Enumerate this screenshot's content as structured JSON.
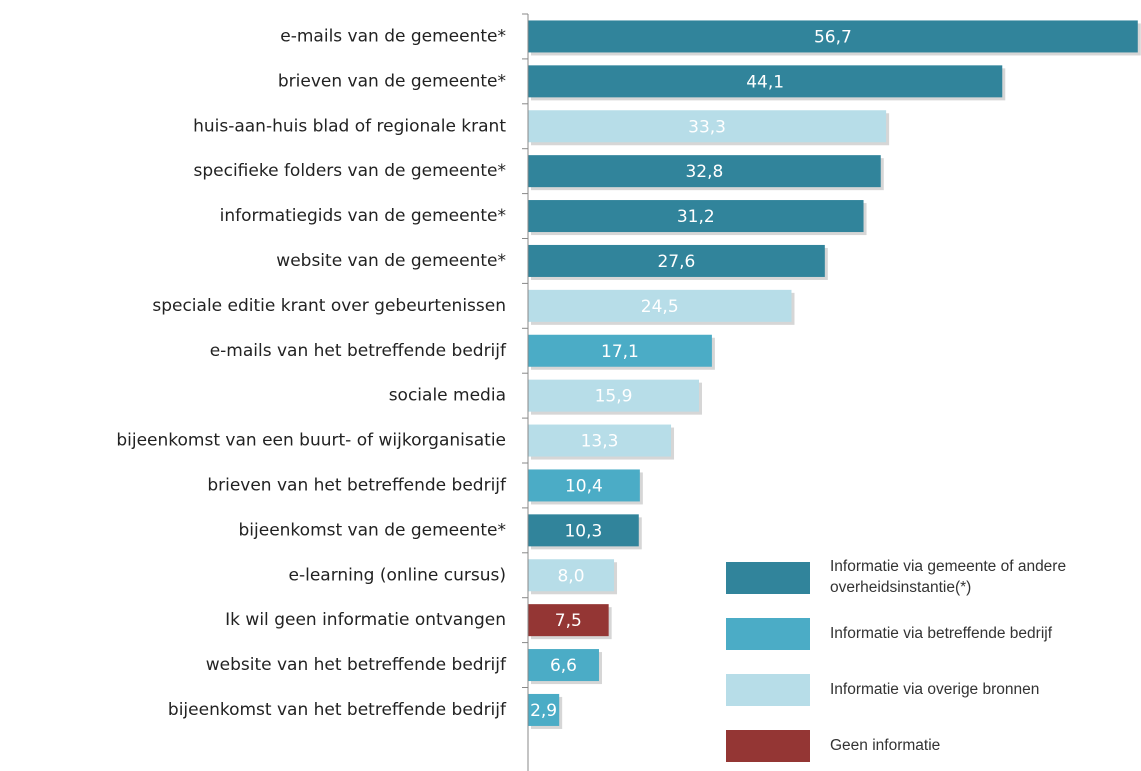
{
  "chart_data": {
    "type": "bar",
    "orientation": "horizontal",
    "categories": [
      "e-mails van de gemeente*",
      "brieven van de gemeente*",
      "huis-aan-huis blad of regionale krant",
      "specifieke folders van de gemeente*",
      "informatiegids van de gemeente*",
      "website van de gemeente*",
      "speciale editie krant over gebeurtenissen",
      "e-mails van het betreffende bedrijf",
      "sociale media",
      "bijeenkomst van een buurt- of wijkorganisatie",
      "brieven van het betreffende bedrijf",
      "bijeenkomst van de gemeente*",
      "e-learning (online cursus)",
      "Ik wil geen informatie ontvangen",
      "website van het betreffende bedrijf",
      "bijeenkomst van het betreffende bedrijf"
    ],
    "values": [
      56.7,
      44.1,
      33.3,
      32.8,
      31.2,
      27.6,
      24.5,
      17.1,
      15.9,
      13.3,
      10.4,
      10.3,
      8.0,
      7.5,
      6.6,
      2.9
    ],
    "value_labels": [
      "56,7",
      "44,1",
      "33,3",
      "32,8",
      "31,2",
      "27,6",
      "24,5",
      "17,1",
      "15,9",
      "13,3",
      "10,4",
      "10,3",
      "8,0",
      "7,5",
      "6,6",
      "2,9"
    ],
    "colors": [
      "#31849b",
      "#31849b",
      "#b7dde8",
      "#31849b",
      "#31849b",
      "#31849b",
      "#b7dde8",
      "#4bacc6",
      "#b7dde8",
      "#b7dde8",
      "#4bacc6",
      "#31849b",
      "#b7dde8",
      "#943634",
      "#4bacc6",
      "#4bacc6"
    ],
    "xlim": [
      0,
      57
    ],
    "legend": [
      {
        "name": "Informatie via gemeente of andere overheidsinstantie(*)",
        "color": "#31849b"
      },
      {
        "name": "Informatie via betreffende bedrijf",
        "color": "#4bacc6"
      },
      {
        "name": "Informatie via overige bronnen",
        "color": "#b7dde8"
      },
      {
        "name": "Geen informatie",
        "color": "#943634"
      }
    ]
  }
}
